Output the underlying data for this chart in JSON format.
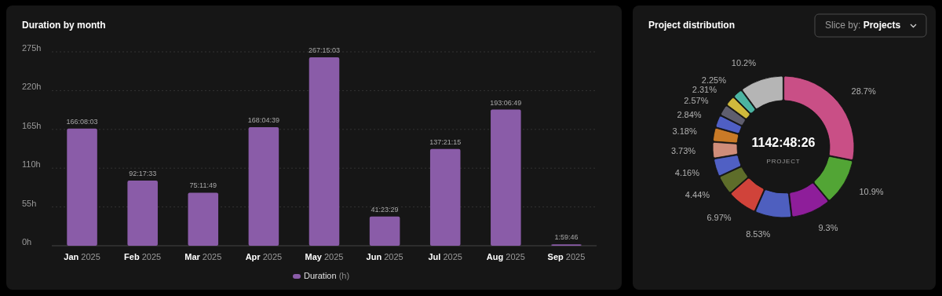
{
  "chart_data": [
    {
      "type": "bar",
      "title": "Duration by month",
      "categories": [
        "Jan 2025",
        "Feb 2025",
        "Mar 2025",
        "Apr 2025",
        "May 2025",
        "Jun 2025",
        "Jul 2025",
        "Aug 2025",
        "Sep 2025"
      ],
      "series": [
        {
          "name": "Duration (h)",
          "color": "#8a5ca8",
          "values": [
            166.1342,
            92.2925,
            75.1969,
            168.0775,
            267.2508,
            41.3914,
            137.3542,
            193.1136,
            1.9961
          ],
          "value_labels": [
            "166:08:03",
            "92:17:33",
            "75:11:49",
            "168:04:39",
            "267:15:03",
            "41:23:29",
            "137:21:15",
            "193:06:49",
            "1:59:46"
          ]
        }
      ],
      "ylim": [
        0,
        275
      ],
      "yticks": [
        {
          "value": 0,
          "label": "0h"
        },
        {
          "value": 55,
          "label": "55h"
        },
        {
          "value": 110,
          "label": "110h"
        },
        {
          "value": 165,
          "label": "165h"
        },
        {
          "value": 220,
          "label": "220h"
        },
        {
          "value": 275,
          "label": "275h"
        }
      ],
      "grid": "y",
      "legend": "bottom"
    },
    {
      "type": "donut",
      "title": "Project distribution",
      "categories": [
        null,
        null,
        null,
        null,
        null,
        null,
        null,
        null,
        null,
        null,
        null,
        null,
        null,
        null
      ],
      "values": [
        28.7,
        10.9,
        9.3,
        8.53,
        6.97,
        4.44,
        4.16,
        3.73,
        3.18,
        2.84,
        2.57,
        2.31,
        2.25,
        10.2
      ],
      "value_labels": [
        "28.7%",
        "10.9%",
        "9.3%",
        "8.53%",
        "6.97%",
        "4.44%",
        "4.16%",
        "3.73%",
        "3.18%",
        "2.84%",
        "2.57%",
        "2.31%",
        "2.25%",
        "10.2%"
      ],
      "colors": [
        "#c94f86",
        "#52a535",
        "#8e1e9a",
        "#4e5fbf",
        "#d0433a",
        "#5e6d2a",
        "#5060c4",
        "#d08d7a",
        "#c97a27",
        "#4f5fc4",
        "#5f5e6e",
        "#cfb93c",
        "#4bb3a1",
        "#b5b5b5"
      ],
      "annotations": [
        "1142:48:26",
        "PROJECT",
        "Slice by: Projects"
      ]
    }
  ]
}
